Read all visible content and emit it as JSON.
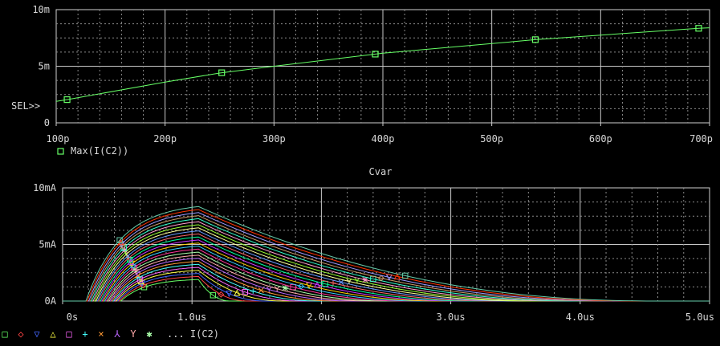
{
  "chart_data": [
    {
      "type": "line",
      "x": [
        100,
        110,
        200,
        250,
        300,
        400,
        500,
        540,
        600,
        690,
        700
      ],
      "series": [
        {
          "name": "Max(I(C2))",
          "values": [
            1.9,
            2.05,
            3.6,
            4.4,
            5.0,
            6.15,
            7.0,
            7.35,
            7.75,
            8.35,
            8.4
          ]
        }
      ],
      "marker_x": [
        110,
        252,
        393,
        540,
        690
      ],
      "x_ticks": [
        "100p",
        "200p",
        "300p",
        "400p",
        "500p",
        "600p",
        "700p"
      ],
      "y_ticks": [
        "0",
        "5m",
        "10m"
      ],
      "x_range": [
        100,
        700
      ],
      "y_range": [
        0,
        10
      ],
      "xlabel": "Cvar",
      "grid": true,
      "sel_label": "SEL>>",
      "legend": [
        "Max(I(C2))"
      ],
      "color": "#66ff66"
    },
    {
      "type": "line",
      "x_range": [
        0,
        5.0
      ],
      "y_range": [
        0,
        10
      ],
      "x_ticks": [
        "0s",
        "1.0us",
        "2.0us",
        "3.0us",
        "4.0us",
        "5.0us"
      ],
      "y_ticks": [
        "0A",
        "5mA",
        "10mA"
      ],
      "grid": true,
      "family": {
        "count": 25,
        "peak_time_us": 1.05,
        "start_time_us_min": 0.18,
        "start_time_us_max": 0.45,
        "peak_min_mA": 1.9,
        "peak_max_mA": 8.35,
        "decay_end_us_min": 1.3,
        "decay_end_us_max": 4.6
      },
      "legend_symbols": [
        "□",
        "◇",
        "▽",
        "△",
        "□",
        "+",
        "×",
        "⅄",
        "Y",
        "✱"
      ],
      "legend_text": "... I(C2)",
      "colors": [
        "#66ff66",
        "#ff4444",
        "#4466ff",
        "#ffff44",
        "#ff66ff",
        "#44ffff",
        "#ff9933",
        "#bb66ff",
        "#ffaaaa",
        "#aaffaa",
        "#ff3399",
        "#33ccff",
        "#ffcc00",
        "#cc33ff",
        "#00ff99",
        "#ff6666",
        "#6699ff",
        "#ffff99",
        "#99ff33",
        "#ff99cc",
        "#33ffcc",
        "#cc9966",
        "#9999ff",
        "#ff3300",
        "#66ccaa"
      ]
    }
  ]
}
